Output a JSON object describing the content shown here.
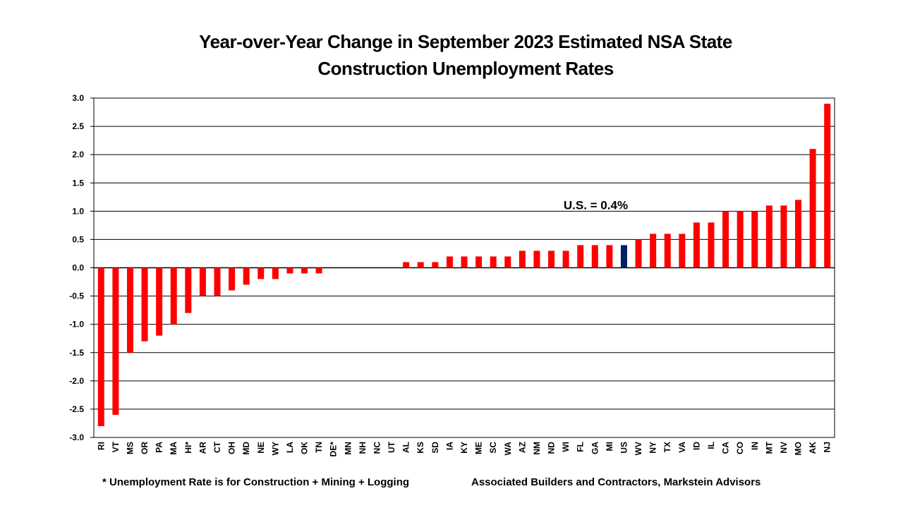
{
  "chart_data": {
    "type": "bar",
    "title_lines": [
      "Year-over-Year Change in September 2023 Estimated NSA State",
      "Construction Unemployment Rates"
    ],
    "xlabel": "",
    "ylabel": "",
    "ylim": [
      -3.0,
      3.0
    ],
    "y_ticks": [
      "3.0",
      "2.5",
      "2.0",
      "1.5",
      "1.0",
      "0.5",
      "0.0",
      "-0.5",
      "-1.0",
      "-1.5",
      "-2.0",
      "-2.5",
      "-3.0"
    ],
    "y_tick_values": [
      3.0,
      2.5,
      2.0,
      1.5,
      1.0,
      0.5,
      0.0,
      -0.5,
      -1.0,
      -1.5,
      -2.0,
      -2.5,
      -3.0
    ],
    "grid": true,
    "legend": "none",
    "categories": [
      "RI",
      "VT",
      "MS",
      "OR",
      "PA",
      "MA",
      "HI*",
      "AR",
      "CT",
      "OH",
      "MD",
      "NE",
      "WY",
      "LA",
      "OK",
      "TN",
      "DE*",
      "MN",
      "NH",
      "NC",
      "UT",
      "AL",
      "KS",
      "SD",
      "IA",
      "KY",
      "ME",
      "SC",
      "WA",
      "AZ",
      "NM",
      "ND",
      "WI",
      "FL",
      "GA",
      "MI",
      "US",
      "WV",
      "NY",
      "TX",
      "VA",
      "ID",
      "IL",
      "CA",
      "CO",
      "IN",
      "MT",
      "NV",
      "MO",
      "AK",
      "NJ"
    ],
    "values": [
      -2.8,
      -2.6,
      -1.5,
      -1.3,
      -1.2,
      -1.0,
      -0.8,
      -0.5,
      -0.5,
      -0.4,
      -0.3,
      -0.2,
      -0.2,
      -0.1,
      -0.1,
      -0.1,
      0.0,
      0.0,
      0.0,
      0.0,
      0.0,
      0.1,
      0.1,
      0.1,
      0.2,
      0.2,
      0.2,
      0.2,
      0.2,
      0.3,
      0.3,
      0.3,
      0.3,
      0.4,
      0.4,
      0.4,
      0.4,
      0.5,
      0.6,
      0.6,
      0.6,
      0.8,
      0.8,
      1.0,
      1.0,
      1.0,
      1.1,
      1.1,
      1.2,
      2.1,
      2.9
    ],
    "highlight_category": "US",
    "colors": {
      "bar": "#ff0000",
      "highlight": "#002060",
      "grid": "#000000",
      "axis": "#000000"
    },
    "annotation": {
      "text": "U.S. = 0.4%",
      "category": "US"
    }
  },
  "footnotes": {
    "left": "* Unemployment Rate is for Construction + Mining + Logging",
    "right": "Associated Builders and Contractors, Markstein Advisors"
  }
}
